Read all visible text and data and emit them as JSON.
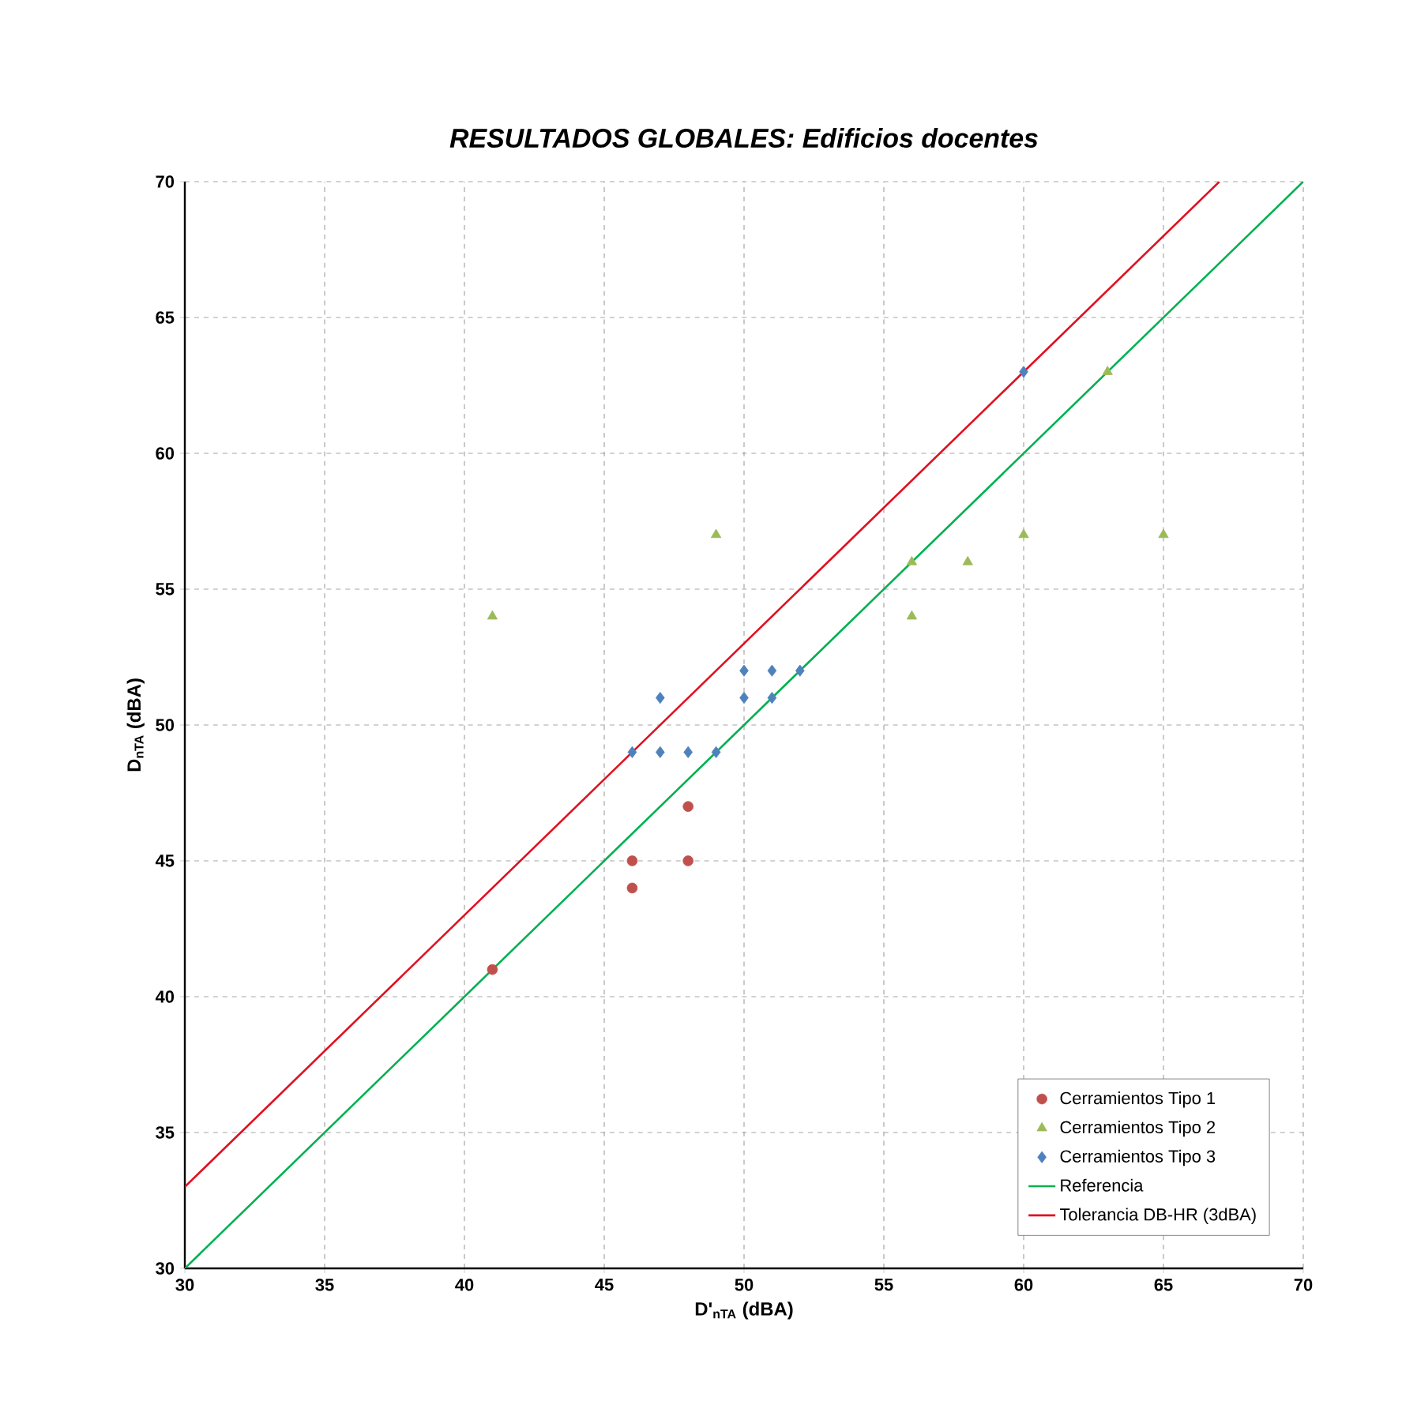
{
  "chart_data": {
    "type": "scatter",
    "title": "RESULTADOS GLOBALES: Edificios docentes",
    "xlabel": "D'$_{nTA}$ (dBA)",
    "ylabel": "D$_{nTA}$ (dBA)",
    "xlim": [
      30,
      70
    ],
    "ylim": [
      30,
      70
    ],
    "xticks": [
      30,
      35,
      40,
      45,
      50,
      55,
      60,
      65,
      70
    ],
    "yticks": [
      30,
      35,
      40,
      45,
      50,
      55,
      60,
      65,
      70
    ],
    "grid": true,
    "legend": "bottom right",
    "series": [
      {
        "name": "Cerramientos Tipo 1",
        "color": "#c0504d",
        "marker": "circle",
        "x": [
          41,
          46,
          46,
          48,
          48
        ],
        "values": [
          41,
          45,
          44,
          47,
          45
        ]
      },
      {
        "name": "Cerramientos Tipo 2",
        "color": "#9bbb59",
        "marker": "triangle",
        "x": [
          41,
          49,
          56,
          56,
          58,
          60,
          63,
          65
        ],
        "values": [
          54,
          57,
          56,
          54,
          56,
          57,
          63,
          57
        ]
      },
      {
        "name": "Cerramientos Tipo 3",
        "color": "#4f81bd",
        "marker": "diamond",
        "x": [
          46,
          47,
          47,
          48,
          49,
          50,
          50,
          51,
          51,
          52,
          60
        ],
        "values": [
          49,
          51,
          49,
          49,
          49,
          52,
          51,
          52,
          51,
          52,
          63
        ]
      },
      {
        "name": "Referencia",
        "type": "line",
        "color": "#00b050",
        "marker": "none",
        "line_style": "solid",
        "x": [
          30,
          70
        ],
        "values": [
          30,
          70
        ]
      },
      {
        "name": "Tolerancia DB-HR (3dBA)",
        "type": "line",
        "color": "#e01020",
        "marker": "none",
        "line_style": "solid",
        "x": [
          30,
          67
        ],
        "values": [
          33,
          70
        ]
      }
    ]
  }
}
